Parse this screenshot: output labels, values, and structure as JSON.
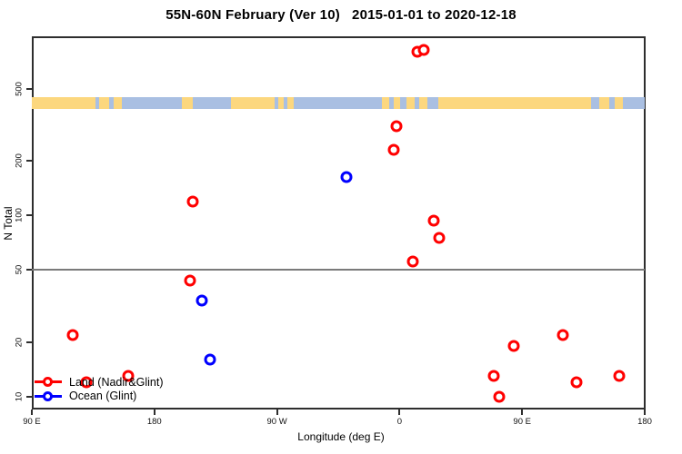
{
  "chart_data": {
    "type": "scatter",
    "title": "55N-60N February (Ver 10)   2015-01-01 to 2020-12-18",
    "xlabel": "Longitude (deg E)",
    "ylabel": "N Total",
    "x_axis": {
      "domain_plot_deg": [
        90,
        540
      ],
      "wrap_note": "axis spans 450 deg; points with longitude 90E-180E are drawn at both ends",
      "ticks": [
        {
          "deg": 90,
          "label": "90 E"
        },
        {
          "deg": 180,
          "label": "180"
        },
        {
          "deg": 270,
          "label": "90 W"
        },
        {
          "deg": 360,
          "label": "0"
        },
        {
          "deg": 450,
          "label": "90 E"
        },
        {
          "deg": 540,
          "label": "180"
        }
      ]
    },
    "y_axis": {
      "scale": "log",
      "ticks": [
        10,
        20,
        50,
        100,
        200,
        500
      ],
      "range": [
        8.5,
        975
      ]
    },
    "reference_line_n": 50,
    "series": [
      {
        "name": "Land (Nadir&Glint)",
        "color": "#ff0000",
        "points": [
          {
            "lon": 13,
            "n": 800
          },
          {
            "lon": 18,
            "n": 820
          },
          {
            "lon": -2,
            "n": 310
          },
          {
            "lon": -4,
            "n": 230
          },
          {
            "lon": -152,
            "n": 120
          },
          {
            "lon": 25,
            "n": 94
          },
          {
            "lon": 29,
            "n": 75
          },
          {
            "lon": 10,
            "n": 56
          },
          {
            "lon": -154,
            "n": 44
          },
          {
            "lon": 120,
            "n": 22
          },
          {
            "lon": 84,
            "n": 19
          },
          {
            "lon": 161,
            "n": 13
          },
          {
            "lon": 130,
            "n": 12
          },
          {
            "lon": 69,
            "n": 13
          },
          {
            "lon": 73,
            "n": 10
          }
        ]
      },
      {
        "name": "Ocean (Glint)",
        "color": "#0000ff",
        "points": [
          {
            "lon": -39,
            "n": 163
          },
          {
            "lon": -145,
            "n": 34
          },
          {
            "lon": -139,
            "n": 16
          }
        ]
      }
    ],
    "map_strip": {
      "ocean_color": "#a9bfe2",
      "land_color": "#fcd77e",
      "land_segments_deg": [
        [
          90,
          136.5
        ],
        [
          139.5,
          147
        ],
        [
          150,
          156
        ],
        [
          200,
          208.5
        ],
        [
          236,
          268.5
        ],
        [
          271,
          275
        ],
        [
          277.5,
          282.5
        ],
        [
          347,
          352.5
        ],
        [
          355.5,
          360.5
        ],
        [
          365,
          371
        ],
        [
          374.5,
          380.5
        ],
        [
          388.5,
          500.5
        ],
        [
          506.5,
          514
        ],
        [
          518,
          524
        ]
      ]
    }
  },
  "legend": {
    "items": [
      {
        "label": "Land (Nadir&Glint)",
        "color": "#ff0000"
      },
      {
        "label": "Ocean (Glint)",
        "color": "#0000ff"
      }
    ]
  }
}
